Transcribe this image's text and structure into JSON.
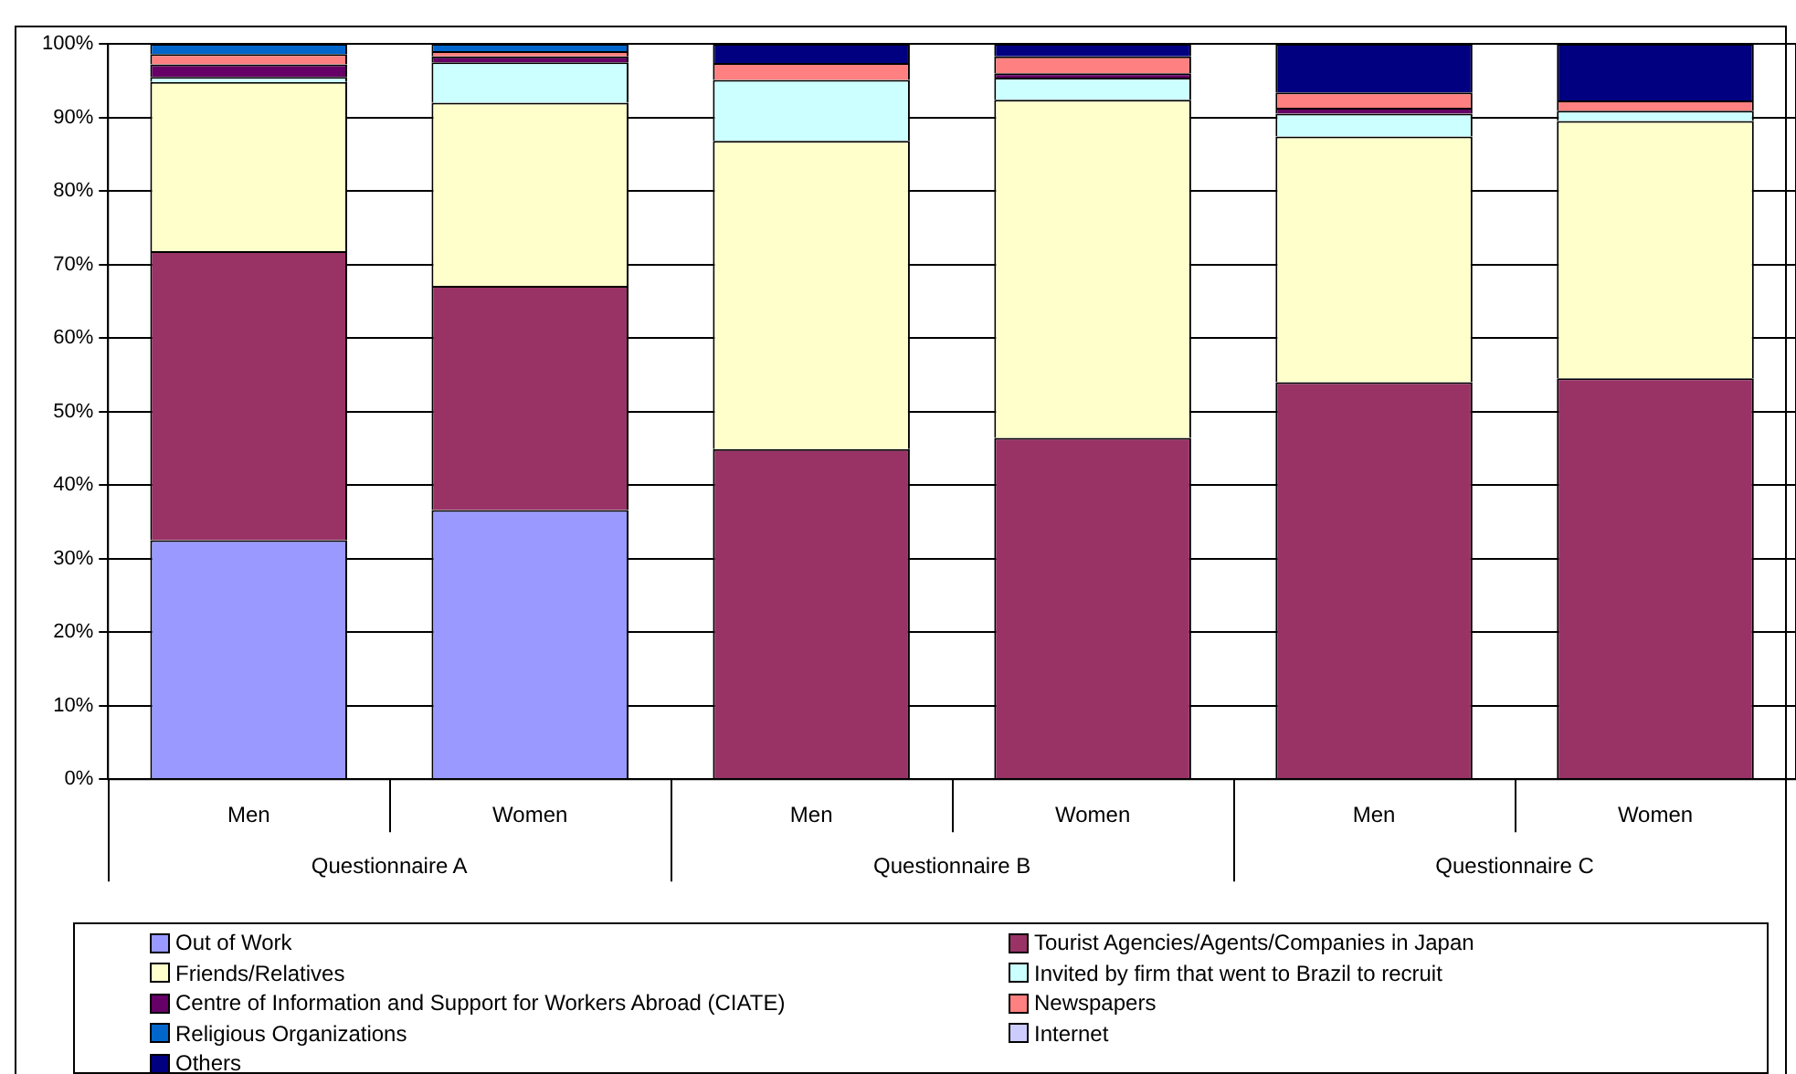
{
  "chart_data": {
    "type": "bar",
    "stacked": true,
    "categories": [
      "Men",
      "Women",
      "Men",
      "Women",
      "Men",
      "Women"
    ],
    "annotations": [
      "Questionnaire A",
      "Questionnaire B",
      "Questionnaire C"
    ],
    "ylim": [
      0,
      100
    ],
    "yticks": [
      {
        "value": 0,
        "label": "0%"
      },
      {
        "value": 10,
        "label": "10%"
      },
      {
        "value": 20,
        "label": "20%"
      },
      {
        "value": 30,
        "label": "30%"
      },
      {
        "value": 40,
        "label": "40%"
      },
      {
        "value": 50,
        "label": "50%"
      },
      {
        "value": 60,
        "label": "60%"
      },
      {
        "value": 70,
        "label": "70%"
      },
      {
        "value": 80,
        "label": "80%"
      },
      {
        "value": 90,
        "label": "90%"
      },
      {
        "value": 100,
        "label": "100%"
      }
    ],
    "grid": "y",
    "legend": "bottom",
    "series": [
      {
        "name": "Out of Work",
        "color": "#9999ff",
        "values": [
          32.5,
          36.6,
          0,
          0,
          0,
          0
        ]
      },
      {
        "name": "Tourist Agencies/Agents/Companies in Japan",
        "color": "#993366",
        "values": [
          39.3,
          30.5,
          44.9,
          46.4,
          54.0,
          54.5
        ]
      },
      {
        "name": "Friends/Relatives",
        "color": "#ffffcc",
        "values": [
          23.0,
          24.9,
          41.9,
          46.0,
          33.4,
          35.0
        ]
      },
      {
        "name": "Invited by firm that went to Brazil to recruit",
        "color": "#ccffff",
        "values": [
          0.7,
          5.5,
          8.3,
          3.0,
          3.1,
          1.4
        ]
      },
      {
        "name": "Centre of Information and Support for Workers Abroad (CIATE)",
        "color": "#660066",
        "values": [
          1.7,
          0.8,
          0,
          0.6,
          0.8,
          0
        ]
      },
      {
        "name": "Newspapers",
        "color": "#ff8080",
        "values": [
          1.4,
          0.7,
          2.3,
          2.3,
          2.1,
          1.4
        ]
      },
      {
        "name": "Religious Organizations",
        "color": "#0066cc",
        "values": [
          1.4,
          1.0,
          0,
          0,
          0,
          0
        ]
      },
      {
        "name": "Internet",
        "color": "#ccccff",
        "values": [
          0,
          0,
          0,
          0,
          0,
          0
        ]
      },
      {
        "name": "Others",
        "color": "#000080",
        "values": [
          0,
          0,
          2.6,
          1.7,
          6.6,
          7.7
        ]
      }
    ]
  }
}
